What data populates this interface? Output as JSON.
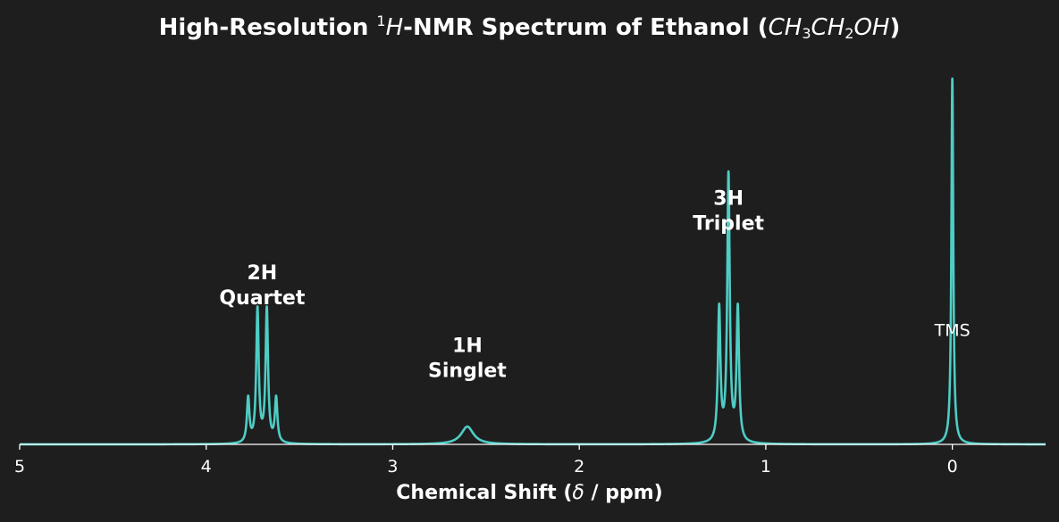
{
  "chart_data": {
    "type": "line",
    "title": {
      "prefix": "High-Resolution ",
      "sup": "1",
      "italic_h": "H",
      "middle": "-NMR Spectrum of Ethanol (",
      "f1": "CH",
      "s1": "3",
      "f2": "CH",
      "s2": "2",
      "f3": "OH",
      "suffix": ")"
    },
    "xlabel": {
      "prefix": "Chemical Shift (",
      "italic": "δ",
      "suffix": " / ppm)"
    },
    "ylabel": "",
    "x_reversed": true,
    "xlim": [
      5.0,
      -0.5
    ],
    "ylim": [
      0,
      1.0
    ],
    "x_ticks": [
      "5",
      "4",
      "3",
      "2",
      "1",
      "0"
    ],
    "grid": false,
    "line_color": "#4ecdc4",
    "axis_color": "#ffffff",
    "background": "#1e1e1e",
    "peaks": [
      {
        "center": 3.775,
        "height": 0.125,
        "width": 0.008
      },
      {
        "center": 3.725,
        "height": 0.375,
        "width": 0.008
      },
      {
        "center": 3.675,
        "height": 0.375,
        "width": 0.008
      },
      {
        "center": 3.625,
        "height": 0.125,
        "width": 0.008
      },
      {
        "center": 2.6,
        "height": 0.05,
        "width": 0.04
      },
      {
        "center": 1.25,
        "height": 0.375,
        "width": 0.008
      },
      {
        "center": 1.2,
        "height": 0.75,
        "width": 0.008
      },
      {
        "center": 1.15,
        "height": 0.375,
        "width": 0.008
      },
      {
        "center": 0.0,
        "height": 1.03,
        "width": 0.006
      }
    ],
    "annotations": [
      {
        "lines": [
          "2H",
          "Quartet"
        ],
        "x": 3.7,
        "y": 0.45,
        "style": "bold"
      },
      {
        "lines": [
          "1H",
          "Singlet"
        ],
        "x": 2.6,
        "y": 0.245,
        "style": "bold"
      },
      {
        "lines": [
          "3H",
          "Triplet"
        ],
        "x": 1.2,
        "y": 0.66,
        "style": "bold"
      },
      {
        "lines": [
          "TMS"
        ],
        "x": 0.0,
        "y": 0.325,
        "style": "plain"
      }
    ]
  }
}
